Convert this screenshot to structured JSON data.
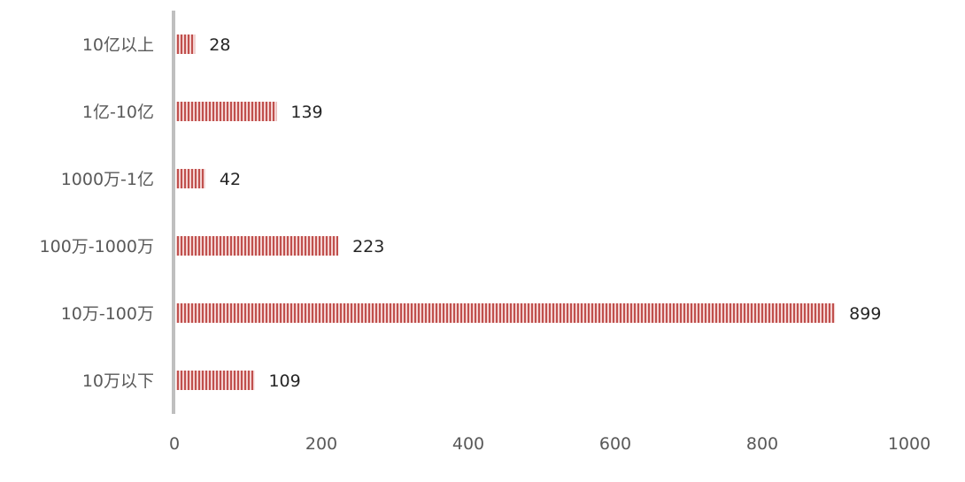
{
  "chart_data": {
    "type": "bar",
    "orientation": "horizontal",
    "categories": [
      "10亿以上",
      "1亿-10亿",
      "1000万-1亿",
      "100万-1000万",
      "10万-100万",
      "10万以下"
    ],
    "values": [
      28,
      139,
      42,
      223,
      899,
      109
    ],
    "data_labels": [
      "28",
      "139",
      "42",
      "223",
      "899",
      "109"
    ],
    "x_ticks": [
      "0",
      "200",
      "400",
      "600",
      "800",
      "1000"
    ],
    "xlim": [
      0,
      1000
    ],
    "title": "",
    "xlabel": "",
    "ylabel": "",
    "grid": false,
    "legend": "none",
    "colors": {
      "bar_stripe": "#c0504d",
      "bar_light": "#f3d2d1",
      "axis_line": "#bfbfbf",
      "text": "#595959",
      "data_label": "#262626"
    }
  }
}
